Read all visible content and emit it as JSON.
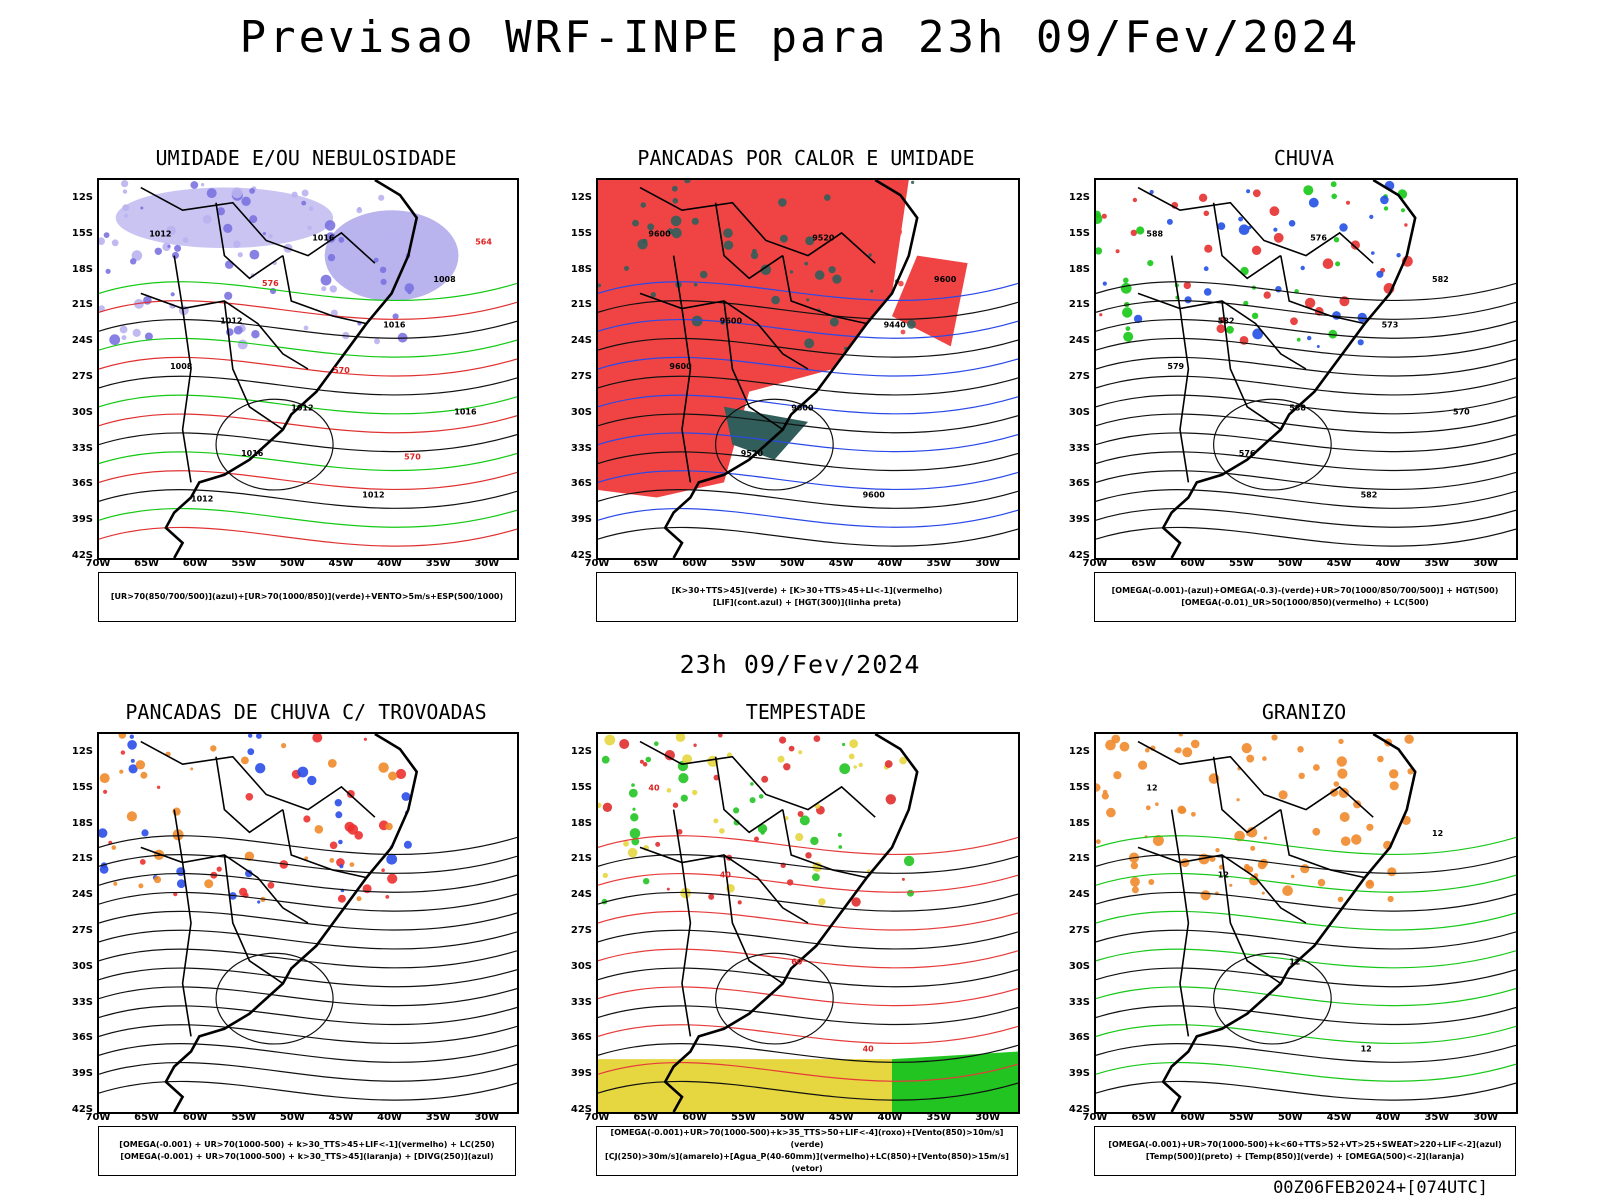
{
  "header": {
    "title": "Previsao WRF-INPE  para 23h 09/Fev/2024",
    "mid_title": "23h 09/Fev/2024",
    "footer": "00Z06FEB2024+[074UTC]"
  },
  "axes": {
    "y_ticks": [
      "12S",
      "15S",
      "18S",
      "21S",
      "24S",
      "27S",
      "30S",
      "33S",
      "36S",
      "39S",
      "42S"
    ],
    "x_ticks": [
      "70W",
      "65W",
      "60W",
      "55W",
      "50W",
      "45W",
      "40W",
      "35W",
      "30W"
    ]
  },
  "panels": [
    {
      "title": "UMIDADE E/OU NEBULOSIDADE",
      "legend": [
        "[UR>70(850/700/500)](azul)+[UR>70(1000/850)](verde)+VENTO>5m/s+ESP(500/1000)"
      ],
      "contour_labels": [
        "1012",
        "1012",
        "1012",
        "1012",
        "1008",
        "1008",
        "1016",
        "1016",
        "1016",
        "1016",
        "1012",
        "576",
        "570",
        "570",
        "564"
      ]
    },
    {
      "title": "PANCADAS POR CALOR E UMIDADE",
      "legend": [
        "[K>30+TTS>45](verde) + [K>30+TTS>45+LI<-1](vermelho)",
        "[LIF](cont.azul) + [HGT(300)](linha preta)"
      ],
      "contour_labels": [
        "9600",
        "9600",
        "9600",
        "9600",
        "9600",
        "9600",
        "9520",
        "9520",
        "9440"
      ]
    },
    {
      "title": "CHUVA",
      "legend": [
        "[OMEGA(-0.001)-(azul)+OMEGA(-0.3)-(verde)+UR>70(1000/850/700/500)] + HGT(500)",
        "[OMEGA(-0.01)_UR>50(1000/850)(vermelho) + LC(500)"
      ],
      "contour_labels": [
        "588",
        "582",
        "588",
        "582",
        "582",
        "579",
        "576",
        "576",
        "573",
        "570"
      ]
    },
    {
      "title": "PANCADAS DE CHUVA C/ TROVOADAS",
      "legend": [
        "[OMEGA(-0.001) + UR>70(1000-500) + k>30_TTS>45+LIF<-1](vermelho) + LC(250)",
        "[OMEGA(-0.001) + UR>70(1000-500) + k>30_TTS>45](laranja) + [DIVG(250)](azul)"
      ],
      "contour_labels": []
    },
    {
      "title": "TEMPESTADE",
      "legend": [
        "[OMEGA(-0.001)+UR>70(1000-500)+k>35_TTS>50+LIF<-4](roxo)+[Vento(850)>10m/s](verde)",
        "[CJ(250)>30m/s](amarelo)+[Agua_P(40-60mm)](vermelho)+LC(850)+[Vento(850)>15m/s](vetor)"
      ],
      "contour_labels": [
        "40",
        "40",
        "60",
        "40"
      ]
    },
    {
      "title": "GRANIZO",
      "legend": [
        "[OMEGA(-0.001)+UR>70(1000-500)+k<60+TTS>52+VT>25+SWEAT>220+LIF<-2](azul)",
        "[Temp(500)](preto) + [Temp(850)](verde) + [OMEGA(500)<-2](laranja)"
      ],
      "contour_labels": [
        "12",
        "12",
        "12",
        "12",
        "12"
      ]
    }
  ],
  "chart_data": [
    {
      "type": "heatmap",
      "title": "UMIDADE E/OU NEBULOSIDADE",
      "xlim": [
        "70W",
        "28W"
      ],
      "ylim": [
        "42S",
        "10S"
      ],
      "fields": [
        "UR>70 850/700/500 (azul)",
        "UR>70 1000/850 (verde)",
        "VENTO>5m/s",
        "ESP 500/1000"
      ],
      "isoline_values": [
        1008,
        1012,
        1016,
        564,
        570,
        576
      ]
    },
    {
      "type": "heatmap",
      "title": "PANCADAS POR CALOR E UMIDADE",
      "xlim": [
        "70W",
        "28W"
      ],
      "ylim": [
        "42S",
        "10S"
      ],
      "fields": [
        "K>30+TTS>45 (verde)",
        "K>30+TTS>45+LI<-1 (vermelho)",
        "LIF (cont.azul)",
        "HGT 300 (linha preta)"
      ],
      "isoline_values": [
        9440,
        9520,
        9600
      ]
    },
    {
      "type": "heatmap",
      "title": "CHUVA",
      "xlim": [
        "70W",
        "28W"
      ],
      "ylim": [
        "42S",
        "10S"
      ],
      "fields": [
        "OMEGA(-0.001) azul",
        "OMEGA(-0.3) verde",
        "OMEGA(-0.01) UR>50 vermelho",
        "LC 500"
      ],
      "isoline_values": [
        570,
        573,
        576,
        579,
        582,
        588
      ]
    },
    {
      "type": "heatmap",
      "title": "PANCADAS DE CHUVA C/ TROVOADAS",
      "xlim": [
        "70W",
        "28W"
      ],
      "ylim": [
        "42S",
        "10S"
      ],
      "fields": [
        "vermelho",
        "laranja",
        "DIVG 250 azul",
        "LC 250"
      ]
    },
    {
      "type": "heatmap",
      "title": "TEMPESTADE",
      "xlim": [
        "70W",
        "28W"
      ],
      "ylim": [
        "42S",
        "10S"
      ],
      "fields": [
        "roxo",
        "Vento 850>10m/s verde",
        "CJ 250>30m/s amarelo",
        "Agua_P 40-60mm vermelho",
        "Vento 850>15m/s vetor"
      ],
      "isoline_values": [
        40,
        60
      ]
    },
    {
      "type": "heatmap",
      "title": "GRANIZO",
      "xlim": [
        "70W",
        "28W"
      ],
      "ylim": [
        "42S",
        "10S"
      ],
      "fields": [
        "azul",
        "Temp 500 preto",
        "Temp 850 verde",
        "OMEGA 500<-2 laranja"
      ],
      "isoline_values": [
        12
      ]
    }
  ]
}
